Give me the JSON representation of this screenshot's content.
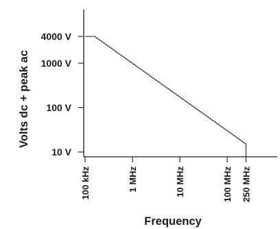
{
  "chart_data": {
    "type": "line",
    "title": "",
    "xlabel": "Frequency",
    "ylabel": "Volts dc + peak ac",
    "x_scale": "log",
    "y_scale": "log",
    "x_ticks": [
      {
        "value": 100000,
        "label": "100 kHz"
      },
      {
        "value": 1000000,
        "label": "1 MHz"
      },
      {
        "value": 10000000,
        "label": "10 MHz"
      },
      {
        "value": 100000000,
        "label": "100 MHz"
      },
      {
        "value": 250000000,
        "label": "250 MHz"
      }
    ],
    "y_ticks": [
      {
        "value": 10,
        "label": "10 V"
      },
      {
        "value": 100,
        "label": "100 V"
      },
      {
        "value": 1000,
        "label": "1000 V"
      },
      {
        "value": 4000,
        "label": "4000 V"
      }
    ],
    "series": [
      {
        "points": [
          {
            "x": 100000,
            "y": 4000
          },
          {
            "x": 160000,
            "y": 4000
          },
          {
            "x": 250000000,
            "y": 15
          }
        ]
      }
    ],
    "grid": false,
    "legend": "none"
  }
}
